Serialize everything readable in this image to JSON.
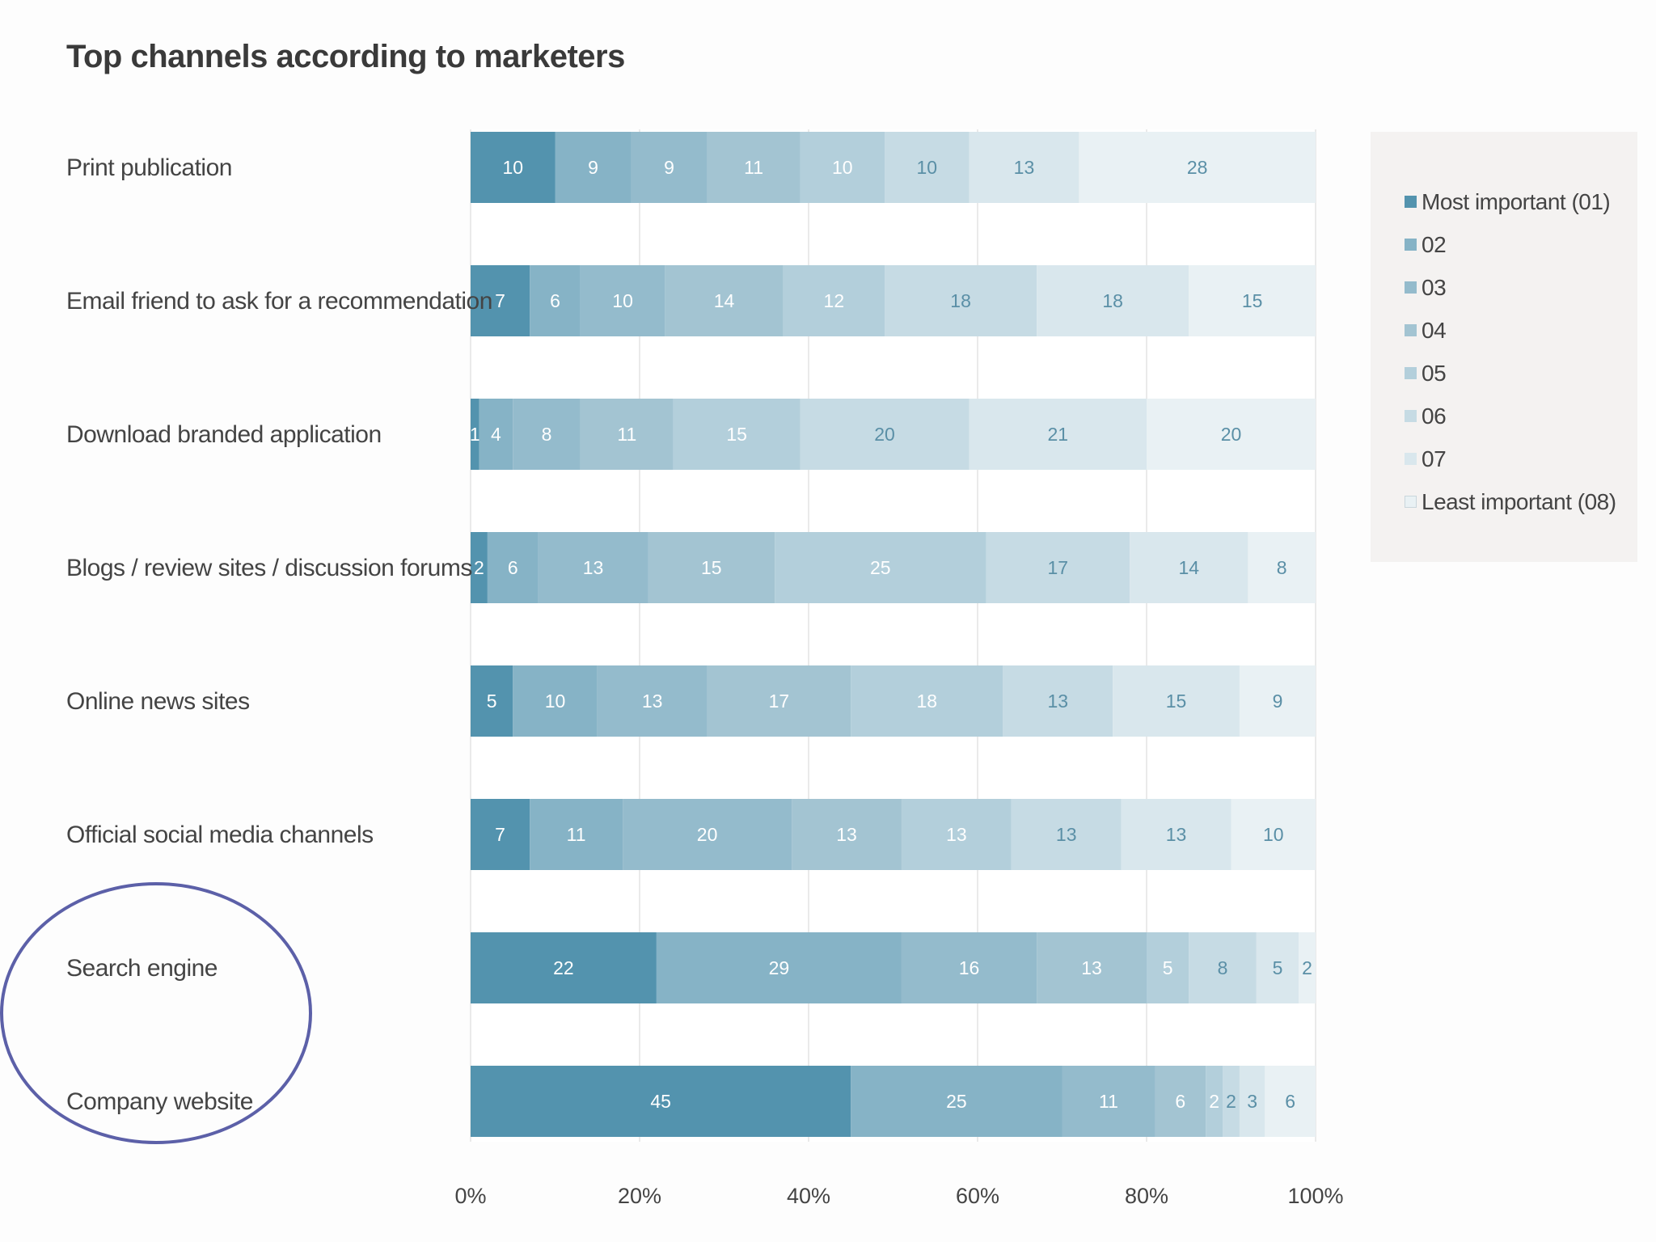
{
  "chart_data": {
    "type": "bar",
    "orientation": "horizontal",
    "stacked": true,
    "title": "Top channels according to marketers",
    "xlabel": "",
    "ylabel": "",
    "xlim": [
      0,
      100
    ],
    "grid": true,
    "legend_position": "right",
    "x_ticks": [
      "0%",
      "20%",
      "40%",
      "60%",
      "80%",
      "100%"
    ],
    "categories": [
      "Print publication",
      "Email friend to ask for a recommendation",
      "Download branded application",
      "Blogs / review sites / discussion forums",
      "Online news sites",
      "Official social media channels",
      "Search engine",
      "Company website"
    ],
    "series": [
      {
        "name": "Most important (01)",
        "color": "#5393ae",
        "text_color": "#ffffff",
        "values": [
          10,
          7,
          1,
          2,
          5,
          7,
          22,
          45
        ]
      },
      {
        "name": "02",
        "color": "#86b3c6",
        "text_color": "#ffffff",
        "values": [
          9,
          6,
          4,
          6,
          10,
          11,
          29,
          25
        ]
      },
      {
        "name": "03",
        "color": "#94bbcc",
        "text_color": "#ffffff",
        "values": [
          9,
          10,
          8,
          13,
          13,
          20,
          16,
          11
        ]
      },
      {
        "name": "04",
        "color": "#a3c4d2",
        "text_color": "#ffffff",
        "values": [
          11,
          14,
          11,
          15,
          17,
          13,
          13,
          6
        ]
      },
      {
        "name": "05",
        "color": "#b3cfdb",
        "text_color": "#ffffff",
        "values": [
          10,
          12,
          15,
          25,
          18,
          13,
          5,
          2
        ]
      },
      {
        "name": "06",
        "color": "#c6dbe4",
        "text_color": "#5a8fa6",
        "values": [
          10,
          18,
          20,
          17,
          13,
          13,
          8,
          2
        ]
      },
      {
        "name": "07",
        "color": "#d9e7ed",
        "text_color": "#5a8fa6",
        "values": [
          13,
          18,
          21,
          14,
          15,
          13,
          5,
          3
        ]
      },
      {
        "name": "Least important (08)",
        "color": "#e9f1f4",
        "text_color": "#5a8fa6",
        "values": [
          28,
          15,
          20,
          8,
          9,
          10,
          2,
          6
        ]
      }
    ]
  }
}
